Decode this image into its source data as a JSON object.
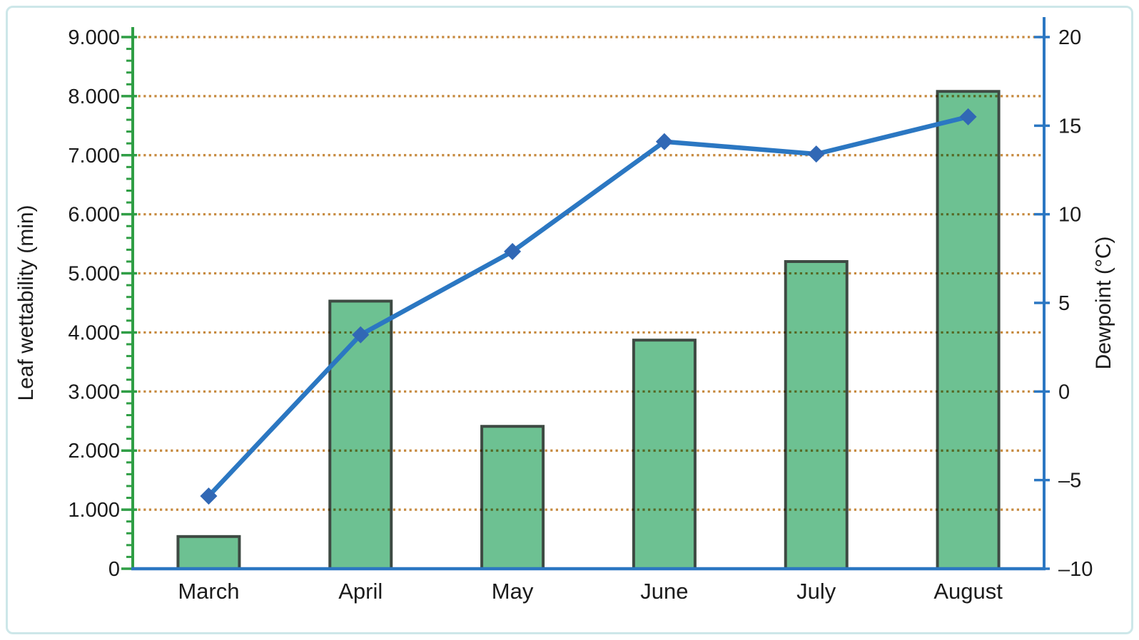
{
  "figure": {
    "description": "Dual-axis combination chart: monthly leaf wettability (bars, left axis) and dewpoint (line with diamond markers, right axis)"
  },
  "chart_data": {
    "type": "bar",
    "subtype": "bar + line dual axis combo",
    "categories": [
      "March",
      "April",
      "May",
      "June",
      "July",
      "August"
    ],
    "series": [
      {
        "name": "Leaf wettability",
        "chart": "bar",
        "axis": "left",
        "values": [
          545,
          4530,
          2410,
          3870,
          5200,
          8080
        ]
      },
      {
        "name": "Dewpoint",
        "chart": "line",
        "axis": "right",
        "marker": "diamond",
        "values": [
          -5.9,
          3.2,
          7.9,
          14.1,
          13.4,
          15.5
        ]
      }
    ],
    "left_axis": {
      "label": "Leaf wettability (min)",
      "ylim": [
        0,
        9000
      ],
      "tick_step": 1000,
      "minor_ticks_per_interval": 4,
      "tick_labels": [
        "0",
        "1.000",
        "2.000",
        "3.000",
        "4.000",
        "5.000",
        "6.000",
        "7.000",
        "8.000",
        "9.000"
      ]
    },
    "right_axis": {
      "label": "Dewpoint (°C)",
      "ylim": [
        -10,
        20
      ],
      "tick_step": 5,
      "tick_labels": [
        "–10",
        "–5",
        "0",
        "5",
        "10",
        "15",
        "20"
      ]
    },
    "grid": {
      "horizontal": true,
      "style": "dotted"
    },
    "legend": "none",
    "colors": {
      "bar_fill": "#6dc192",
      "bar_border": "#3e4a43",
      "line": "#2b77c2",
      "marker": "#3168b5",
      "grid": "#c6893e",
      "left_axis": "#2f9e45",
      "right_axis": "#2b77c2",
      "x_axis": "#2b77c2",
      "text": "#1b1b1b",
      "frame": "#cde7e9",
      "background": "#ffffff"
    }
  }
}
